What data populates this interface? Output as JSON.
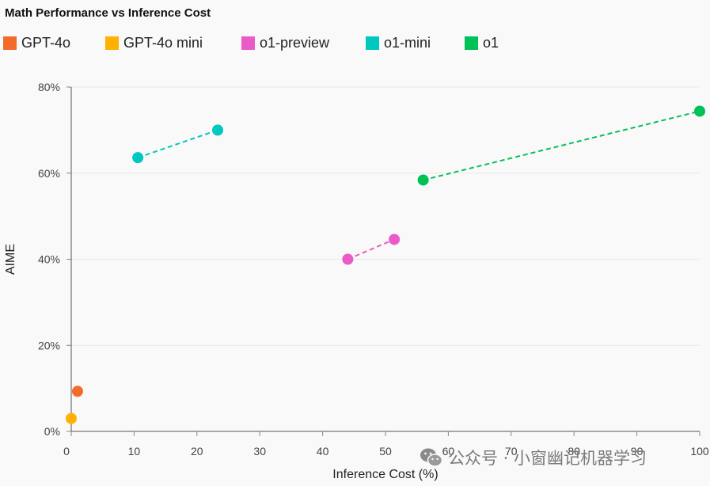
{
  "chart_data": {
    "type": "scatter",
    "title": "Math Performance vs Inference Cost",
    "xlabel": "Inference Cost (%)",
    "ylabel": "AIME",
    "xlim": [
      0,
      100
    ],
    "ylim": [
      0,
      80
    ],
    "x_ticks": [
      "0",
      "10",
      "20",
      "30",
      "40",
      "50",
      "60",
      "70",
      "80",
      "90",
      "100"
    ],
    "y_ticks": [
      "0%",
      "20%",
      "40%",
      "60%",
      "80%"
    ],
    "grid": "horizontal",
    "legend_position": "top-left",
    "series": [
      {
        "name": "GPT-4o",
        "color": "#f26b2a",
        "dashed": false,
        "points": [
          {
            "x": 1,
            "y": 9.3
          }
        ]
      },
      {
        "name": "GPT-4o mini",
        "color": "#ffb000",
        "dashed": false,
        "points": [
          {
            "x": 0,
            "y": 3.0
          }
        ]
      },
      {
        "name": "o1-preview",
        "color": "#e95bc7",
        "dashed": true,
        "points": [
          {
            "x": 44,
            "y": 40.0
          },
          {
            "x": 51.4,
            "y": 44.6
          }
        ]
      },
      {
        "name": "o1-mini",
        "color": "#00c8c0",
        "dashed": true,
        "points": [
          {
            "x": 10.6,
            "y": 63.6
          },
          {
            "x": 23.3,
            "y": 70.0
          }
        ]
      },
      {
        "name": "o1",
        "color": "#00c157",
        "dashed": true,
        "points": [
          {
            "x": 56,
            "y": 58.4
          },
          {
            "x": 100,
            "y": 74.4
          }
        ]
      }
    ]
  },
  "watermark": {
    "icon": "wechat-icon",
    "text": "公众号 · 小窗幽记机器学习"
  }
}
